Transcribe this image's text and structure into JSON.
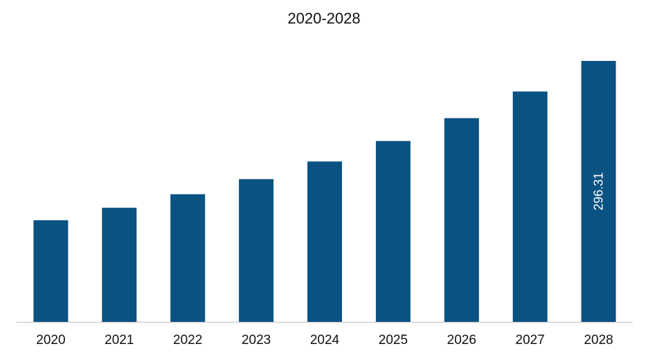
{
  "chart_data": {
    "type": "bar",
    "title": "2020-2028",
    "xlabel": "",
    "ylabel": "",
    "categories": [
      "2020",
      "2021",
      "2022",
      "2023",
      "2024",
      "2025",
      "2026",
      "2027",
      "2028"
    ],
    "values": [
      115.4,
      129.5,
      144.9,
      162.1,
      182.1,
      205.4,
      231.3,
      261.6,
      296.31
    ],
    "data_labels": [
      "",
      "",
      "",
      "",
      "",
      "",
      "",
      "",
      "296.31"
    ],
    "ylim": [
      0,
      296.31
    ],
    "grid": false,
    "legend": "none",
    "bar_color": "#0a5282",
    "axis_color": "#bfbfbf"
  }
}
